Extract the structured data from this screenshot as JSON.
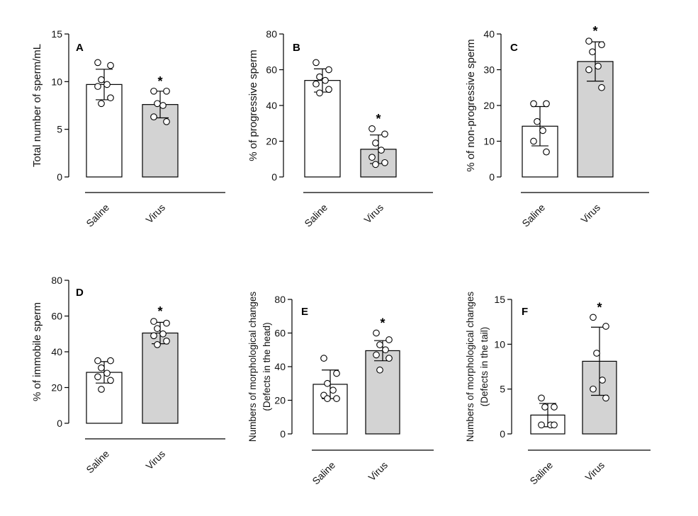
{
  "colors": {
    "saline": "#ffffff",
    "virus": "#d3d3d3",
    "stroke": "#000000"
  },
  "chart_data": [
    {
      "type": "bar",
      "panel": "A",
      "ylabel": "Total number of sperm/mL",
      "ylabel2": "",
      "categories": [
        "Saline",
        "Virus"
      ],
      "ylim": [
        0,
        15
      ],
      "yticks": [
        0,
        5,
        10,
        15
      ],
      "values": [
        9.7,
        7.6
      ],
      "sd": [
        1.6,
        1.4
      ],
      "points": [
        [
          12.0,
          11.7,
          10.2,
          9.7,
          9.5,
          8.3,
          7.7
        ],
        [
          9.0,
          9.0,
          7.7,
          7.5,
          6.3,
          5.8
        ]
      ],
      "significance": [
        "",
        "*"
      ]
    },
    {
      "type": "bar",
      "panel": "B",
      "ylabel": "% of progressive sperm",
      "ylabel2": "",
      "categories": [
        "Saline",
        "Virus"
      ],
      "ylim": [
        0,
        80
      ],
      "yticks": [
        0,
        20,
        40,
        60,
        80
      ],
      "values": [
        54,
        15.5
      ],
      "sd": [
        6.5,
        8.0
      ],
      "points": [
        [
          64,
          60,
          56,
          54,
          52,
          49,
          47
        ],
        [
          27,
          24,
          19,
          15,
          11,
          8,
          7
        ]
      ],
      "significance": [
        "",
        "*"
      ]
    },
    {
      "type": "bar",
      "panel": "C",
      "ylabel": "% of non-progressive sperm",
      "ylabel2": "",
      "categories": [
        "Saline",
        "Virus"
      ],
      "ylim": [
        0,
        40
      ],
      "yticks": [
        0,
        10,
        20,
        30,
        40
      ],
      "values": [
        14.2,
        32.3
      ],
      "sd": [
        5.5,
        5.5
      ],
      "points": [
        [
          20.5,
          20.5,
          15.5,
          13,
          10,
          7
        ],
        [
          38,
          37,
          35,
          31,
          30,
          25
        ]
      ],
      "significance": [
        "",
        "*"
      ]
    },
    {
      "type": "bar",
      "panel": "D",
      "ylabel": "% of immobile sperm",
      "ylabel2": "",
      "categories": [
        "Saline",
        "Virus"
      ],
      "ylim": [
        0,
        80
      ],
      "yticks": [
        0,
        20,
        40,
        60,
        80
      ],
      "values": [
        28.5,
        50.5
      ],
      "sd": [
        6.0,
        6.0
      ],
      "points": [
        [
          35,
          35,
          31,
          28,
          26,
          24,
          19
        ],
        [
          57,
          56,
          53,
          50,
          49,
          46,
          44
        ]
      ],
      "significance": [
        "",
        "*"
      ]
    },
    {
      "type": "bar",
      "panel": "E",
      "ylabel": "Numbers of morphological changes",
      "ylabel2": "(Defects in the head)",
      "categories": [
        "Saline",
        "Virus"
      ],
      "ylim": [
        0,
        80
      ],
      "yticks": [
        0,
        20,
        40,
        60,
        80
      ],
      "values": [
        29.5,
        49.5
      ],
      "sd": [
        8.5,
        6.0
      ],
      "points": [
        [
          45,
          36,
          30,
          26,
          23,
          21,
          21
        ],
        [
          60,
          56,
          53,
          50,
          47,
          45,
          38
        ]
      ],
      "significance": [
        "",
        "*"
      ]
    },
    {
      "type": "bar",
      "panel": "F",
      "ylabel": "Numbers of morphological changes",
      "ylabel2": "(Defects in the tail)",
      "categories": [
        "Saline",
        "Virus"
      ],
      "ylim": [
        0,
        15
      ],
      "yticks": [
        0,
        5,
        10,
        15
      ],
      "values": [
        2.1,
        8.1
      ],
      "sd": [
        1.3,
        3.8
      ],
      "points": [
        [
          4,
          3,
          3,
          1,
          1,
          1
        ],
        [
          13,
          12,
          9,
          6,
          5,
          4
        ]
      ],
      "significance": [
        "",
        "*"
      ]
    }
  ]
}
